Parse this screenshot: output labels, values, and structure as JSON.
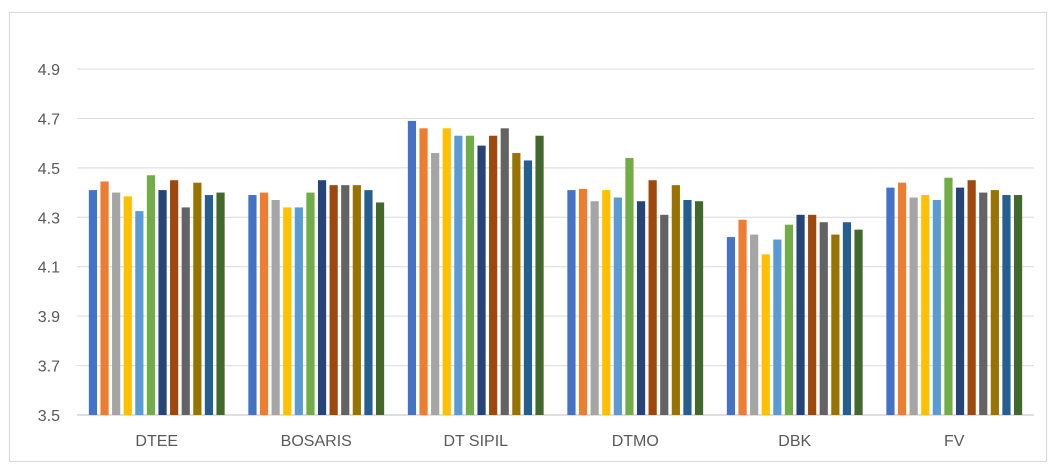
{
  "chart_data": {
    "type": "bar",
    "categories": [
      "DTEE",
      "BOSARIS",
      "DT SIPIL",
      "DTMO",
      "DBK",
      "FV"
    ],
    "ylim": [
      3.5,
      4.9
    ],
    "yticks": [
      "3.5",
      "3.7",
      "3.9",
      "4.1",
      "4.3",
      "4.5",
      "4.7",
      "4.9"
    ],
    "grid": true,
    "series": [
      {
        "color": "#4472c4",
        "values": [
          4.41,
          4.39,
          4.69,
          4.41,
          4.22,
          4.42
        ]
      },
      {
        "color": "#ed7d31",
        "values": [
          4.445,
          4.4,
          4.66,
          4.415,
          4.29,
          4.44
        ]
      },
      {
        "color": "#a5a5a5",
        "values": [
          4.4,
          4.37,
          4.56,
          4.365,
          4.23,
          4.38
        ]
      },
      {
        "color": "#ffc000",
        "values": [
          4.385,
          4.34,
          4.66,
          4.41,
          4.15,
          4.39
        ]
      },
      {
        "color": "#5b9bd5",
        "values": [
          4.325,
          4.34,
          4.63,
          4.38,
          4.21,
          4.37
        ]
      },
      {
        "color": "#70ad47",
        "values": [
          4.47,
          4.4,
          4.63,
          4.54,
          4.27,
          4.46
        ]
      },
      {
        "color": "#264478",
        "values": [
          4.41,
          4.45,
          4.59,
          4.365,
          4.31,
          4.42
        ]
      },
      {
        "color": "#9e480e",
        "values": [
          4.45,
          4.43,
          4.63,
          4.45,
          4.31,
          4.45
        ]
      },
      {
        "color": "#636363",
        "values": [
          4.34,
          4.43,
          4.66,
          4.31,
          4.28,
          4.4
        ]
      },
      {
        "color": "#997300",
        "values": [
          4.44,
          4.43,
          4.56,
          4.43,
          4.23,
          4.41
        ]
      },
      {
        "color": "#255e91",
        "values": [
          4.39,
          4.41,
          4.53,
          4.37,
          4.28,
          4.39
        ]
      },
      {
        "color": "#43682b",
        "values": [
          4.4,
          4.36,
          4.63,
          4.365,
          4.25,
          4.39
        ]
      }
    ]
  }
}
